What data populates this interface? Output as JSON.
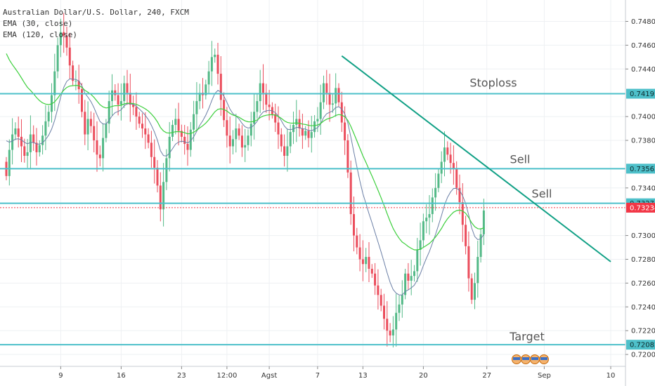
{
  "legend": {
    "title": "Australian Dollar/U.S. Dollar, 240, FXCM",
    "ema1": "EMA (30, close)",
    "ema2": "EMA (120, close)"
  },
  "colors": {
    "up": "#53b987",
    "down": "#eb4d5c",
    "ema_fast": "#6b7fa6",
    "ema_slow": "#3ccf3c",
    "level": "#4ec0ca",
    "trend": "#10a085",
    "price_tag": "#f23645",
    "axis_text": "#333333",
    "grid": "#eef0f3"
  },
  "chart_data": {
    "type": "candlestick",
    "symbol": "Australian Dollar/U.S. Dollar",
    "interval": "240",
    "source": "FXCM",
    "ylim": [
      0.719,
      0.7498
    ],
    "y_ticks": [
      "0.74800",
      "0.74600",
      "0.74400",
      "0.74000",
      "0.73800",
      "0.73400",
      "0.73000",
      "0.72800",
      "0.72600",
      "0.72400",
      "0.72200",
      "0.72000"
    ],
    "x_ticks": [
      "9",
      "16",
      "23",
      "12:00",
      "Agst",
      "7",
      "13",
      "20",
      "27",
      "Sep",
      "10"
    ],
    "x_tick_index": [
      18,
      38,
      58,
      73,
      87,
      103,
      118,
      138,
      159,
      178,
      200
    ],
    "price_tags": [
      {
        "label": "0.74192",
        "value": 0.74192,
        "kind": "level"
      },
      {
        "label": "0.73562",
        "value": 0.73562,
        "kind": "level"
      },
      {
        "label": "0.73271",
        "value": 0.73271,
        "kind": "level"
      },
      {
        "label": "0.73234",
        "value": 0.73234,
        "kind": "current"
      },
      {
        "label": "0.72082",
        "value": 0.72082,
        "kind": "level"
      }
    ],
    "horizontal_levels": [
      {
        "value": 0.74192,
        "label": "Stoploss"
      },
      {
        "value": 0.73562,
        "label": "Sell"
      },
      {
        "value": 0.73271,
        "label": ""
      },
      {
        "value": 0.72082,
        "label": "Target"
      }
    ],
    "annotations": [
      "Stoploss",
      "Sell",
      "Sell",
      "Target"
    ],
    "trendline": {
      "from": {
        "i": 111,
        "price": 0.7451
      },
      "to": {
        "i": 200,
        "price": 0.7278
      }
    },
    "current_price": 0.73234,
    "closes": [
      0.735,
      0.7372,
      0.7385,
      0.739,
      0.7383,
      0.7375,
      0.7367,
      0.737,
      0.7385,
      0.7378,
      0.737,
      0.7376,
      0.7384,
      0.7396,
      0.7404,
      0.7418,
      0.7438,
      0.746,
      0.7471,
      0.7468,
      0.7458,
      0.7443,
      0.743,
      0.743,
      0.7423,
      0.7404,
      0.7385,
      0.7398,
      0.7392,
      0.738,
      0.7368,
      0.7365,
      0.7382,
      0.7394,
      0.7413,
      0.7422,
      0.7418,
      0.741,
      0.7413,
      0.7428,
      0.742,
      0.741,
      0.7408,
      0.74,
      0.7394,
      0.739,
      0.7385,
      0.7378,
      0.7366,
      0.7357,
      0.7342,
      0.7322,
      0.7345,
      0.7365,
      0.7383,
      0.7393,
      0.7398,
      0.7388,
      0.7383,
      0.7377,
      0.7372,
      0.7389,
      0.7402,
      0.7413,
      0.742,
      0.7418,
      0.7427,
      0.7438,
      0.745,
      0.7452,
      0.7436,
      0.7414,
      0.7397,
      0.7384,
      0.7375,
      0.7381,
      0.739,
      0.7384,
      0.7374,
      0.7376,
      0.7384,
      0.7394,
      0.7404,
      0.7413,
      0.7428,
      0.742,
      0.741,
      0.7408,
      0.7402,
      0.7395,
      0.7385,
      0.7375,
      0.7367,
      0.7375,
      0.7387,
      0.7393,
      0.7398,
      0.739,
      0.7384,
      0.7388,
      0.7382,
      0.7387,
      0.7396,
      0.7398,
      0.7412,
      0.7428,
      0.742,
      0.741,
      0.7411,
      0.7424,
      0.7412,
      0.7395,
      0.738,
      0.7353,
      0.7318,
      0.73,
      0.729,
      0.728,
      0.7276,
      0.7282,
      0.7272,
      0.7268,
      0.7258,
      0.725,
      0.7241,
      0.723,
      0.722,
      0.7216,
      0.7221,
      0.7235,
      0.7242,
      0.725,
      0.7268,
      0.7262,
      0.7266,
      0.727,
      0.7288,
      0.7296,
      0.7312,
      0.7315,
      0.7318,
      0.7332,
      0.734,
      0.7352,
      0.7362,
      0.7374,
      0.7368,
      0.7361,
      0.7356,
      0.734,
      0.7328,
      0.7309,
      0.7291,
      0.7264,
      0.7246,
      0.726,
      0.7282,
      0.7301,
      0.7321
    ]
  }
}
